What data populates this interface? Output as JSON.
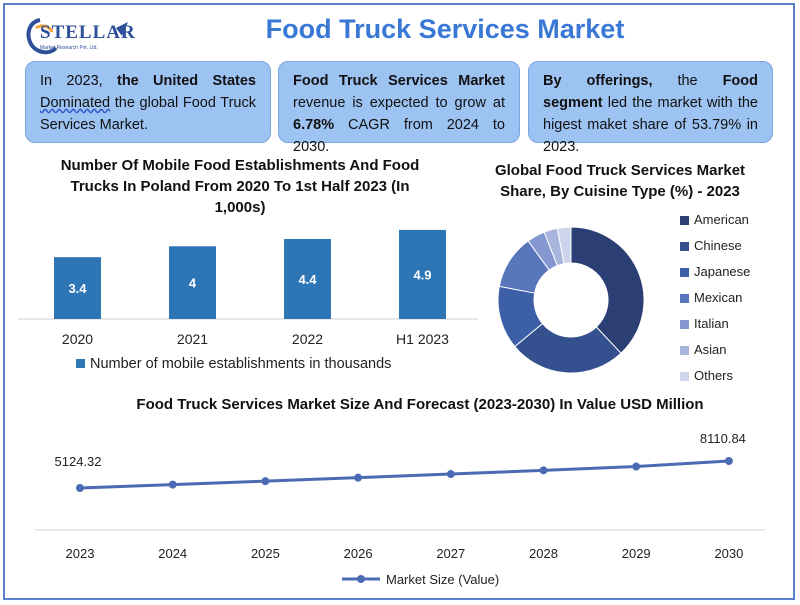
{
  "header": {
    "logo_text": "STELLAR",
    "logo_sub": "Market Research Pvt. Ltd.",
    "title": "Food Truck Services Market"
  },
  "info_boxes": [
    {
      "pre": "In 2023, ",
      "bold": "the United States",
      "wavy": "Dominated",
      "post": " the global Food Truck Services Market."
    },
    {
      "bold1": "Food Truck Services Market",
      "mid": " revenue is expected to grow at ",
      "bold2": "6.78%",
      "post": " CAGR from 2024 to 2030."
    },
    {
      "bold1": "By offerings,",
      "mid": " the ",
      "bold2": "Food segment",
      "post": " led the market with the higest maket share of 53.79% in 2023."
    }
  ],
  "colors": {
    "accent": "#3a78d6",
    "box_bg": "#9dc3f2",
    "bar": "#2e75b6",
    "line": "#4a6bb3"
  },
  "chart_data": [
    {
      "type": "bar",
      "title": "Number Of Mobile Food Establishments And Food Trucks In Poland From 2020 To 1st Half 2023 (In 1,000s)",
      "categories": [
        "2020",
        "2021",
        "2022",
        "H1 2023"
      ],
      "series": [
        {
          "name": "Number of mobile establishments in thousands",
          "values": [
            3.4,
            4,
            4.4,
            4.9
          ]
        }
      ],
      "data_labels": [
        "3.4",
        "4",
        "4.4",
        "4.9"
      ],
      "ylim": [
        0,
        5.5
      ],
      "grid": false,
      "legend_position": "bottom"
    },
    {
      "type": "pie",
      "title": "Global Food Truck Services Market Share, By Cuisine Type (%) - 2023",
      "categories": [
        "American",
        "Chinese",
        "Japanese",
        "Mexican",
        "Italian",
        "Asian",
        "Others"
      ],
      "values": [
        38,
        26,
        14,
        12,
        4,
        3,
        3
      ],
      "colors": [
        "#2c3f75",
        "#35508f",
        "#3d5fa8",
        "#5876bc",
        "#8498cf",
        "#a8b5dd",
        "#cdd5ec"
      ],
      "donut": true,
      "legend_position": "right"
    },
    {
      "type": "line",
      "title": "Food Truck Services Market Size And Forecast (2023-2030) In Value USD Million",
      "x": [
        "2023",
        "2024",
        "2025",
        "2026",
        "2027",
        "2028",
        "2029",
        "2030"
      ],
      "series": [
        {
          "name": "Market Size (Value)",
          "values": [
            5124.32,
            5500,
            5880,
            6270,
            6670,
            7080,
            7500,
            8110.84
          ]
        }
      ],
      "data_labels": {
        "first": "5124.32",
        "last": "8110.84"
      },
      "grid": false,
      "legend_position": "bottom"
    }
  ]
}
